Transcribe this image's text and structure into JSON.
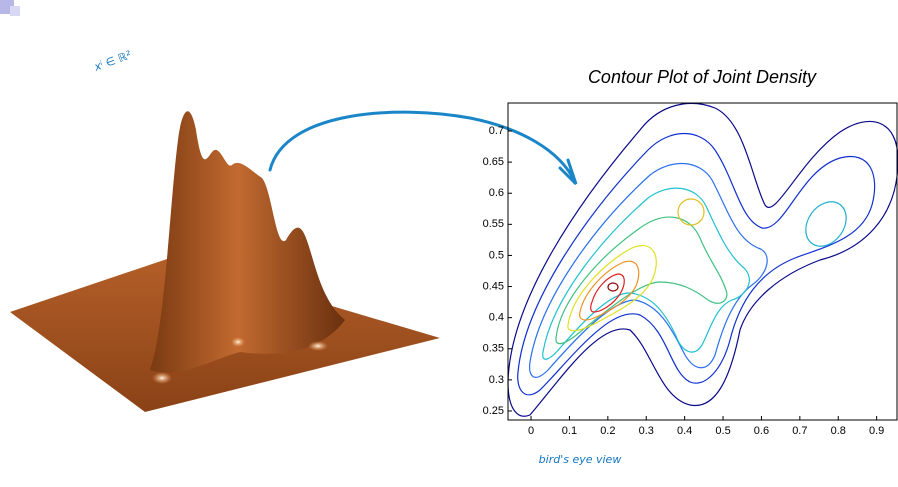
{
  "chart_data": {
    "type": "contour",
    "title": "Contour Plot of Joint Density",
    "annotations": [
      "xⁱ ∈ ℝ²",
      "bird's eye view"
    ],
    "xlim": [
      -0.06,
      0.953
    ],
    "ylim": [
      0.2355,
      0.745
    ],
    "xticks": [
      0,
      0.1,
      0.2,
      0.3,
      0.4,
      0.5,
      0.6,
      0.7,
      0.8,
      0.9
    ],
    "yticks": [
      0.25,
      0.3,
      0.35,
      0.4,
      0.45,
      0.5,
      0.55,
      0.6,
      0.65,
      0.7
    ]
  }
}
